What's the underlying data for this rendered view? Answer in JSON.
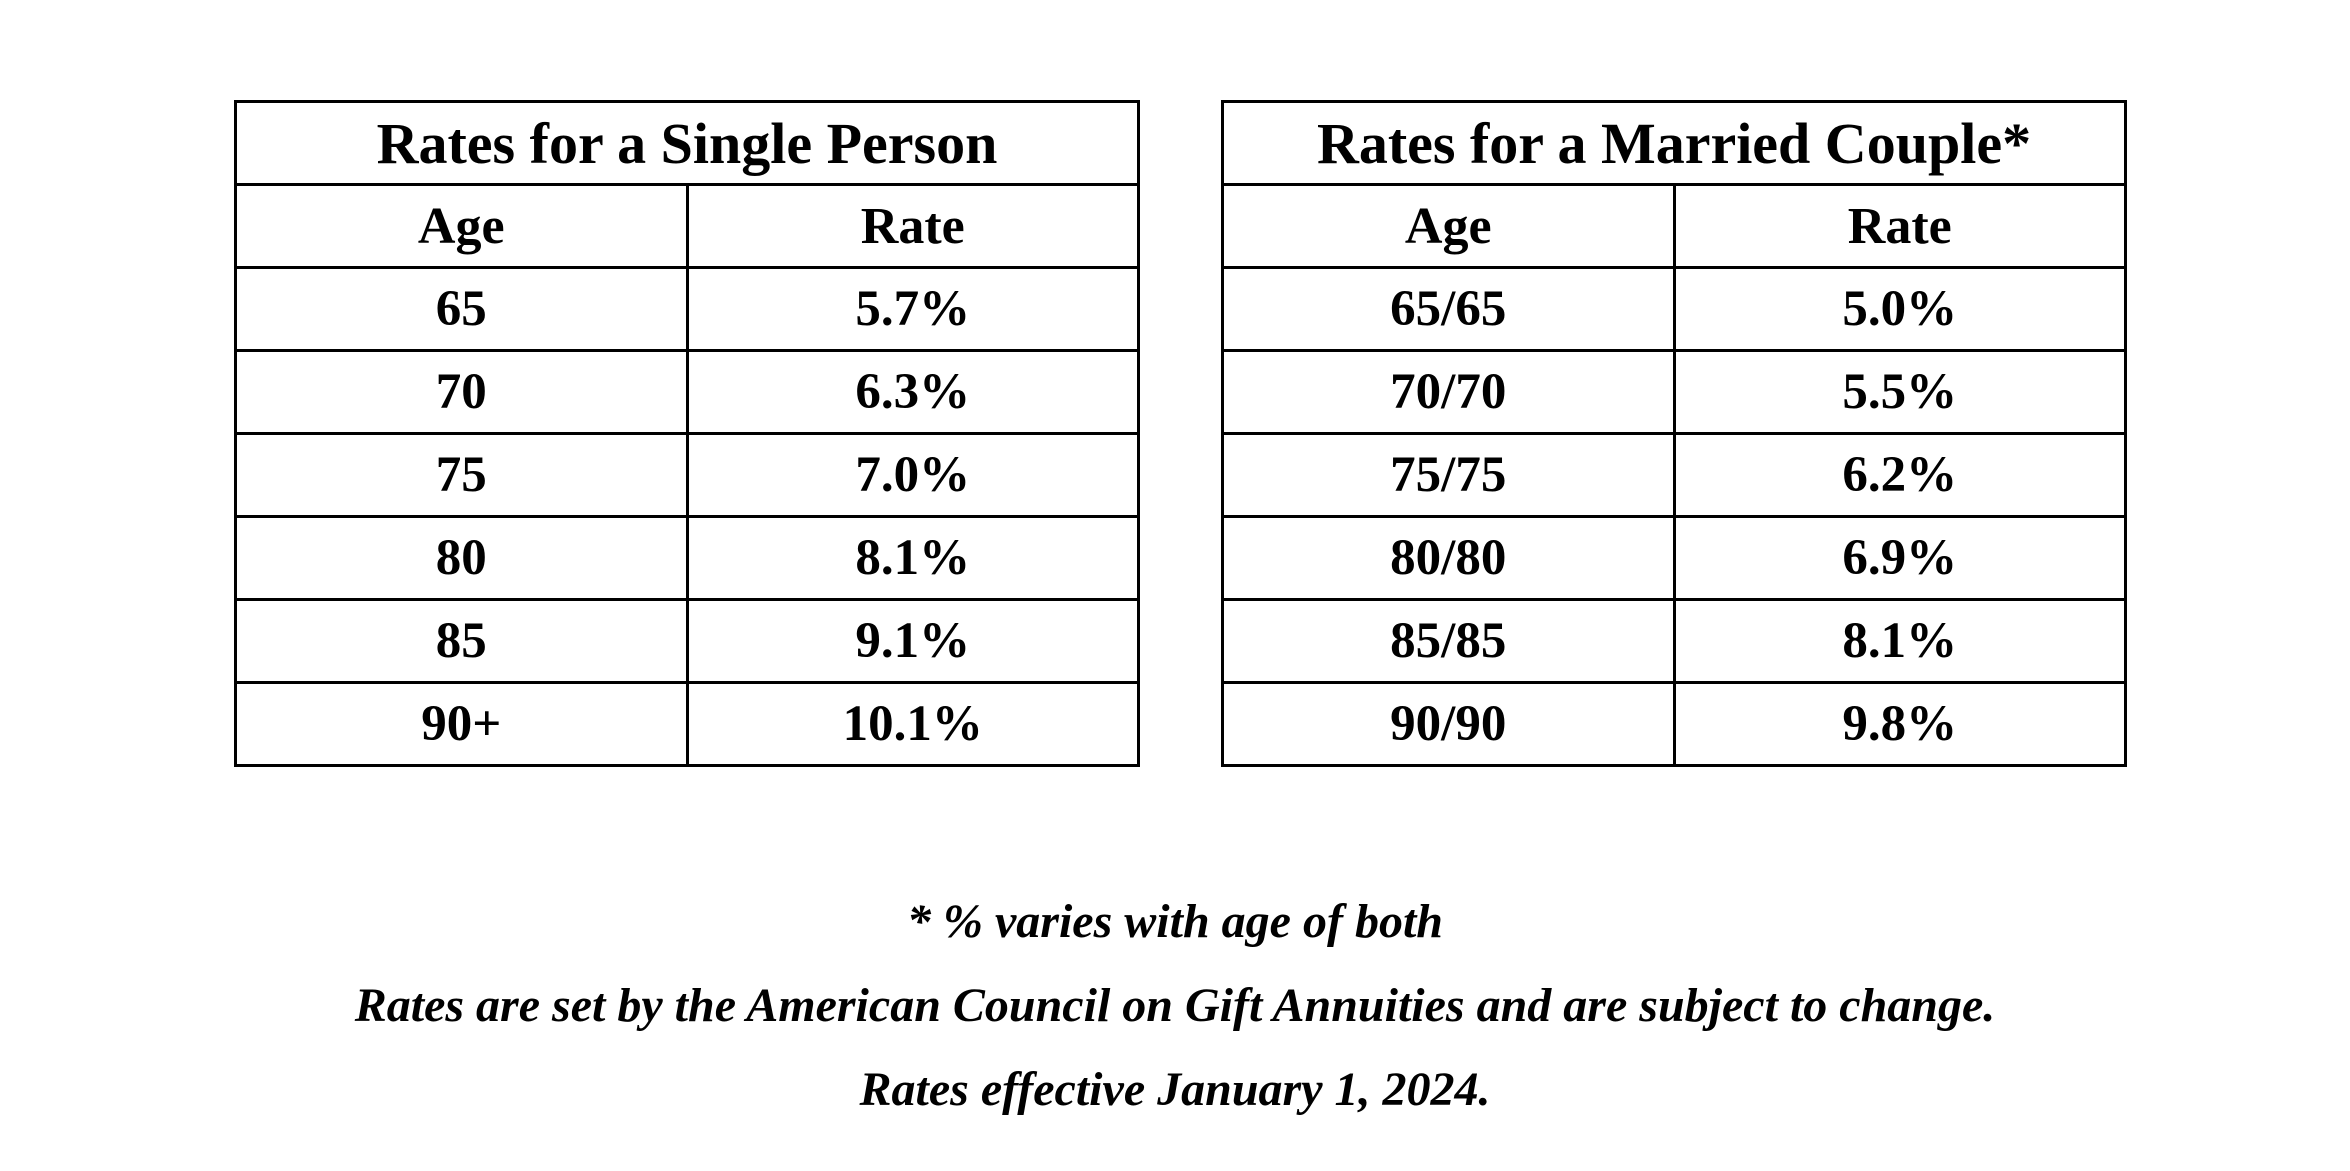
{
  "single": {
    "title": "Rates for a Single Person",
    "headers": {
      "age": "Age",
      "rate": "Rate"
    },
    "rows": [
      {
        "age": "65",
        "rate": "5.7%"
      },
      {
        "age": "70",
        "rate": "6.3%"
      },
      {
        "age": "75",
        "rate": "7.0%"
      },
      {
        "age": "80",
        "rate": "8.1%"
      },
      {
        "age": "85",
        "rate": "9.1%"
      },
      {
        "age": "90+",
        "rate": "10.1%"
      }
    ]
  },
  "couple": {
    "title": "Rates for a Married Couple*",
    "headers": {
      "age": "Age",
      "rate": "Rate"
    },
    "rows": [
      {
        "age": "65/65",
        "rate": "5.0%"
      },
      {
        "age": "70/70",
        "rate": "5.5%"
      },
      {
        "age": "75/75",
        "rate": "6.2%"
      },
      {
        "age": "80/80",
        "rate": "6.9%"
      },
      {
        "age": "85/85",
        "rate": "8.1%"
      },
      {
        "age": "90/90",
        "rate": "9.8%"
      }
    ]
  },
  "notes": {
    "footnote": "* % varies with age of both",
    "disclaimer": "Rates are set by the American Council on Gift Annuities and are subject to change.",
    "effective": "Rates effective January 1, 2024."
  }
}
